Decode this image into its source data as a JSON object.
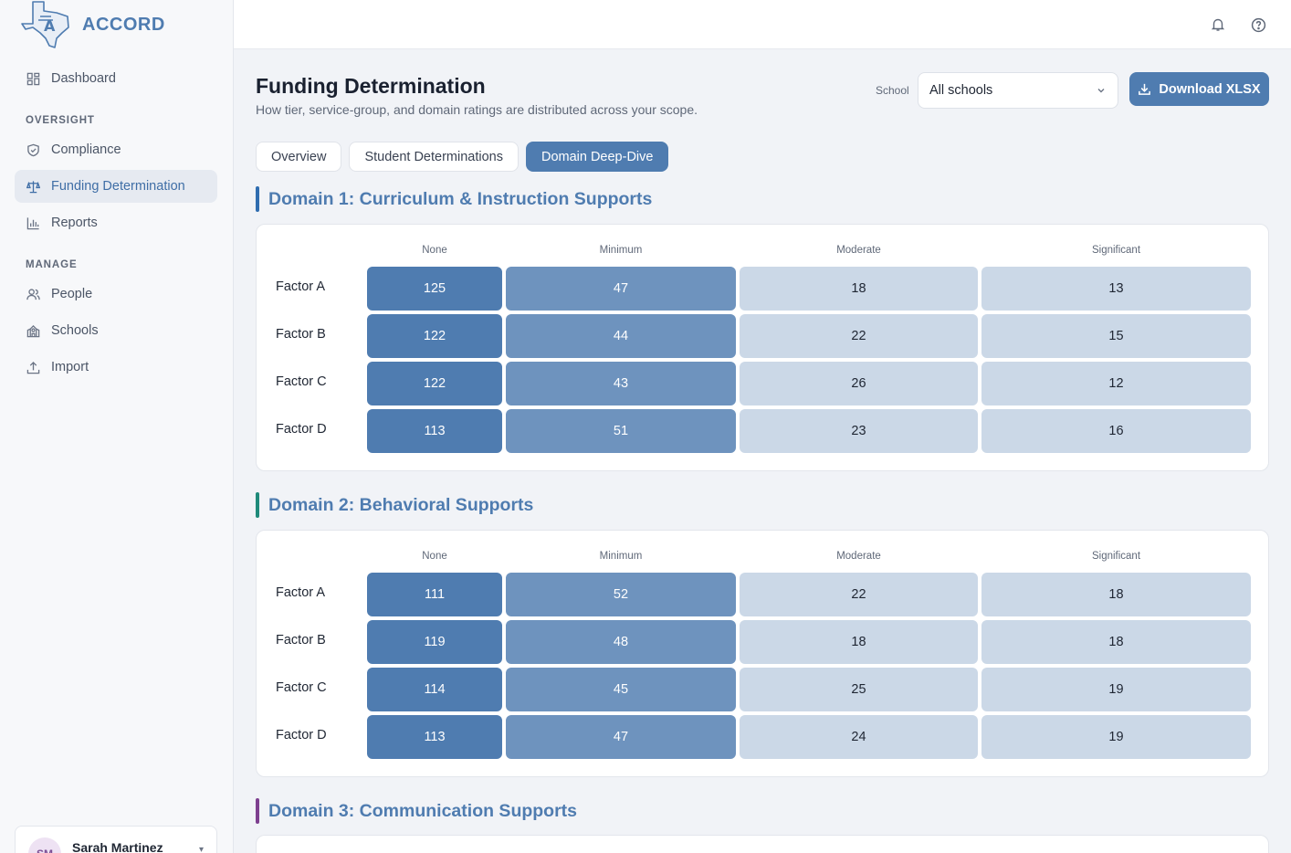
{
  "app": {
    "name": "ACCORD"
  },
  "sidebar": {
    "items": [
      {
        "label": "Dashboard",
        "icon": "dashboard-icon"
      }
    ],
    "sections": [
      {
        "title": "OVERSIGHT",
        "items": [
          {
            "label": "Compliance",
            "icon": "shield-icon"
          },
          {
            "label": "Funding Determination",
            "icon": "scale-icon",
            "active": true
          },
          {
            "label": "Reports",
            "icon": "bar-chart-icon"
          }
        ]
      },
      {
        "title": "MANAGE",
        "items": [
          {
            "label": "People",
            "icon": "people-icon"
          },
          {
            "label": "Schools",
            "icon": "school-icon"
          },
          {
            "label": "Import",
            "icon": "upload-icon"
          }
        ]
      }
    ],
    "user": {
      "initials": "SM",
      "name": "Sarah Martinez"
    }
  },
  "topbar": {
    "icons": [
      "bell-icon",
      "help-icon"
    ]
  },
  "page": {
    "title": "Funding Determination",
    "subtitle": "How tier, service-group, and domain ratings are distributed across your scope.",
    "school_label": "School",
    "school_value": "All schools",
    "download_label": "Download XLSX"
  },
  "tabs": [
    {
      "label": "Overview",
      "active": false
    },
    {
      "label": "Student Determinations",
      "active": false
    },
    {
      "label": "Domain Deep-Dive",
      "active": true
    }
  ],
  "columns": [
    "None",
    "Minimum",
    "Moderate",
    "Significant"
  ],
  "domains": [
    {
      "title": "Domain 1: Curriculum & Instruction Supports",
      "accent": "#2f6db0",
      "rows": [
        {
          "label": "Factor A",
          "values": [
            "125",
            "47",
            "18",
            "13"
          ]
        },
        {
          "label": "Factor B",
          "values": [
            "122",
            "44",
            "22",
            "15"
          ]
        },
        {
          "label": "Factor C",
          "values": [
            "122",
            "43",
            "26",
            "12"
          ]
        },
        {
          "label": "Factor D",
          "values": [
            "113",
            "51",
            "23",
            "16"
          ]
        }
      ]
    },
    {
      "title": "Domain 2: Behavioral Supports",
      "accent": "#1f8a7a",
      "rows": [
        {
          "label": "Factor A",
          "values": [
            "111",
            "52",
            "22",
            "18"
          ]
        },
        {
          "label": "Factor B",
          "values": [
            "119",
            "48",
            "18",
            "18"
          ]
        },
        {
          "label": "Factor C",
          "values": [
            "114",
            "45",
            "25",
            "19"
          ]
        },
        {
          "label": "Factor D",
          "values": [
            "113",
            "47",
            "24",
            "19"
          ]
        }
      ]
    },
    {
      "title": "Domain 3: Communication Supports",
      "accent": "#7d3f8f"
    }
  ],
  "colors": {
    "primary": "#4f7cb0",
    "none": "#4f7cb0",
    "minimum": "#6e93be",
    "moderate": "#cbd8e7",
    "significant": "#cbd8e7"
  }
}
